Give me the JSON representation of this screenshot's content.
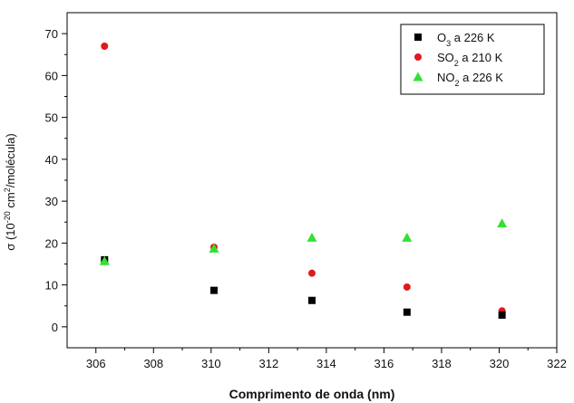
{
  "chart_data": {
    "type": "scatter",
    "xlabel": "Comprimento de onda (nm)",
    "ylabel_parts": {
      "base": "σ (10",
      "exp1": "-20",
      "mid": " cm",
      "exp2": "2",
      "end": "/molécula)"
    },
    "xlim": [
      305,
      322
    ],
    "ylim": [
      -5,
      75
    ],
    "xticks": [
      306,
      308,
      310,
      312,
      314,
      316,
      318,
      320,
      322
    ],
    "yticks": [
      0,
      10,
      20,
      30,
      40,
      50,
      60,
      70
    ],
    "legend_position": "top-right",
    "series": [
      {
        "legend_parts": {
          "pre": "O",
          "sub": "3",
          "post": " a 226 K"
        },
        "marker": "square",
        "color": "#000000",
        "x": [
          306.3,
          310.1,
          313.5,
          316.8,
          320.1
        ],
        "y": [
          16.0,
          8.7,
          6.3,
          3.5,
          2.8
        ]
      },
      {
        "legend_parts": {
          "pre": "SO",
          "sub": "2",
          "post": " a 210 K"
        },
        "marker": "circle",
        "color": "#e0191d",
        "x": [
          306.3,
          310.1,
          313.5,
          316.8,
          320.1
        ],
        "y": [
          67.0,
          19.0,
          12.8,
          9.5,
          3.8
        ]
      },
      {
        "legend_parts": {
          "pre": "NO",
          "sub": "2",
          "post": " a 226 K"
        },
        "marker": "triangle",
        "color": "#33e033",
        "x": [
          306.3,
          310.1,
          313.5,
          316.8,
          320.1
        ],
        "y": [
          15.7,
          18.7,
          21.3,
          21.3,
          24.7
        ]
      }
    ]
  }
}
